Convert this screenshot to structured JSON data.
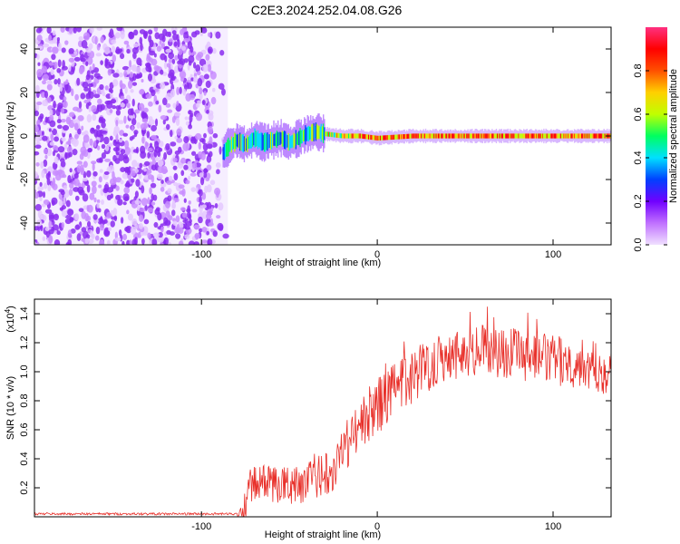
{
  "title": "C2E3.2024.252.04.08.G26",
  "chart_data": [
    {
      "type": "heatmap",
      "name": "spectrogram",
      "xlabel": "Height of straight line (km)",
      "ylabel": "Frequency (Hz)",
      "xlim": [
        -195,
        133
      ],
      "ylim": [
        -50,
        50
      ],
      "xticks": [
        -100,
        0,
        100
      ],
      "yticks": [
        -40,
        -20,
        0,
        20,
        40
      ],
      "grid": false,
      "noise_region_x": [
        -195,
        -85
      ],
      "signal_band": [
        {
          "x": -88,
          "f": -8
        },
        {
          "x": -85,
          "f": -5
        },
        {
          "x": -80,
          "f": -2
        },
        {
          "x": -75,
          "f": -4
        },
        {
          "x": -70,
          "f": -1
        },
        {
          "x": -65,
          "f": -3
        },
        {
          "x": -60,
          "f": -2
        },
        {
          "x": -55,
          "f": -1
        },
        {
          "x": -50,
          "f": -3
        },
        {
          "x": -45,
          "f": -1
        },
        {
          "x": -40,
          "f": 1
        },
        {
          "x": -35,
          "f": 2
        },
        {
          "x": -30,
          "f": 1
        },
        {
          "x": -20,
          "f": 0
        },
        {
          "x": -10,
          "f": 0
        },
        {
          "x": 0,
          "f": -1
        },
        {
          "x": 20,
          "f": 0
        },
        {
          "x": 60,
          "f": 0
        },
        {
          "x": 100,
          "f": 0
        },
        {
          "x": 133,
          "f": 0
        }
      ],
      "colorbar": {
        "label": "Normalized spectral amplitude",
        "range": [
          0,
          1
        ],
        "ticks": [
          "0.0",
          "0.2",
          "0.4",
          "0.6",
          "0.8"
        ],
        "colors": [
          "#f0e0ff",
          "#c070ff",
          "#7000ff",
          "#0040ff",
          "#00e0ff",
          "#00ff60",
          "#c0ff00",
          "#ffd000",
          "#ff5000",
          "#ff0000",
          "#ff3080"
        ]
      }
    },
    {
      "type": "line",
      "name": "snr",
      "xlabel": "Height of straight line (km)",
      "ylabel": "SNR (10 * v/v)",
      "scale_label": "(x10",
      "scale_exp": "4",
      "scale_close": ")",
      "xlim": [
        -195,
        133
      ],
      "ylim": [
        0,
        1.5
      ],
      "xticks": [
        -100,
        0,
        100
      ],
      "yticks": [
        0.2,
        0.4,
        0.6,
        0.8,
        1.0,
        1.2,
        1.4
      ],
      "ytick_labels": [
        "0.2",
        "0.4",
        "0.6",
        "0.8",
        "1.0",
        "1.2",
        "1.4"
      ],
      "color": "#e8302a",
      "grid": false,
      "trend": [
        {
          "x": -195,
          "y": 0.02
        },
        {
          "x": -80,
          "y": 0.02
        },
        {
          "x": -76,
          "y": 0.05
        },
        {
          "x": -72,
          "y": 0.22
        },
        {
          "x": -65,
          "y": 0.24
        },
        {
          "x": -55,
          "y": 0.22
        },
        {
          "x": -45,
          "y": 0.22
        },
        {
          "x": -35,
          "y": 0.26
        },
        {
          "x": -25,
          "y": 0.35
        },
        {
          "x": -15,
          "y": 0.55
        },
        {
          "x": -5,
          "y": 0.7
        },
        {
          "x": 5,
          "y": 0.82
        },
        {
          "x": 15,
          "y": 0.92
        },
        {
          "x": 25,
          "y": 1.02
        },
        {
          "x": 40,
          "y": 1.12
        },
        {
          "x": 60,
          "y": 1.15
        },
        {
          "x": 80,
          "y": 1.12
        },
        {
          "x": 100,
          "y": 1.08
        },
        {
          "x": 120,
          "y": 1.05
        },
        {
          "x": 133,
          "y": 1.0
        }
      ],
      "spread": [
        {
          "x": -195,
          "y": 0.008
        },
        {
          "x": -80,
          "y": 0.008
        },
        {
          "x": -75,
          "y": 0.12
        },
        {
          "x": -40,
          "y": 0.14
        },
        {
          "x": -20,
          "y": 0.18
        },
        {
          "x": 0,
          "y": 0.2
        },
        {
          "x": 40,
          "y": 0.18
        },
        {
          "x": 133,
          "y": 0.17
        }
      ]
    }
  ]
}
